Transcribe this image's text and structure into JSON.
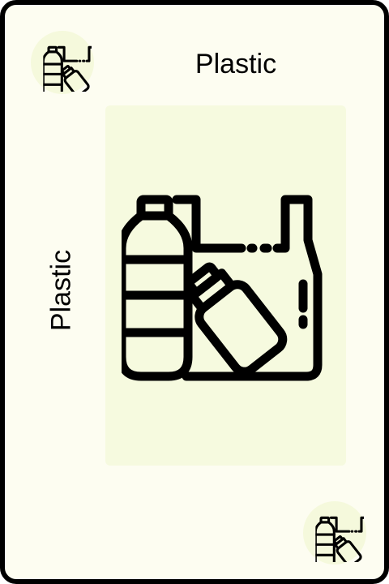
{
  "card": {
    "title": "Plastic",
    "side_label": "Plastic",
    "icon": "plastic-bottle-bag-icon",
    "colors": {
      "card_background": "#fdfdf1",
      "panel_background": "#f6fadf",
      "badge_background": "#f5f9dc",
      "border": "#000000"
    }
  }
}
